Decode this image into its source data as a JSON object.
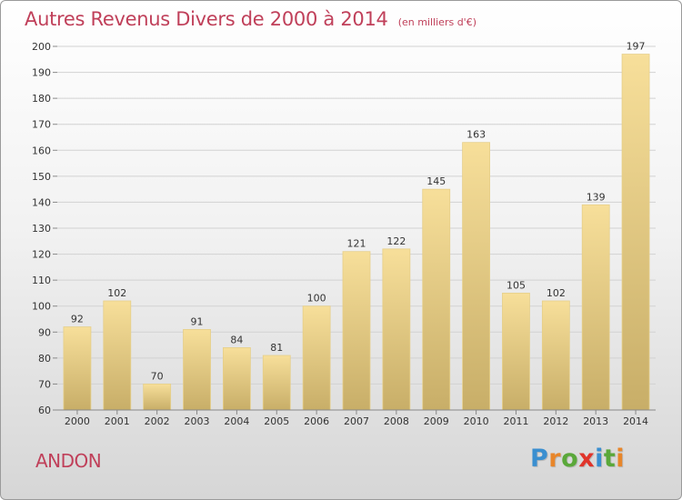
{
  "chart_data": {
    "type": "bar",
    "title": "Autres Revenus Divers de 2000 à 2014",
    "subtitle": "(en milliers d'€)",
    "categories": [
      "2000",
      "2001",
      "2002",
      "2003",
      "2004",
      "2005",
      "2006",
      "2007",
      "2008",
      "2009",
      "2010",
      "2011",
      "2012",
      "2013",
      "2014"
    ],
    "values": [
      92,
      102,
      70,
      91,
      84,
      81,
      100,
      121,
      122,
      145,
      163,
      105,
      102,
      139,
      197
    ],
    "ylim": [
      60,
      200
    ],
    "yticks": [
      60,
      70,
      80,
      90,
      100,
      110,
      120,
      130,
      140,
      150,
      160,
      170,
      180,
      190,
      200
    ],
    "grid": true,
    "legend": "none",
    "colors": {
      "bar_top": "#f7df9a",
      "bar_bottom": "#c8ae68",
      "grid": "#d2d2d2",
      "text": "#333333"
    }
  },
  "footer": {
    "place": "ANDON",
    "brand": "Proxiti",
    "brand_colors": [
      "#3a8fd0",
      "#e8862a",
      "#5aa83a",
      "#e0342a",
      "#3a8fd0",
      "#5aa83a",
      "#e8862a"
    ]
  },
  "colors": {
    "accent": "#c0405a"
  }
}
